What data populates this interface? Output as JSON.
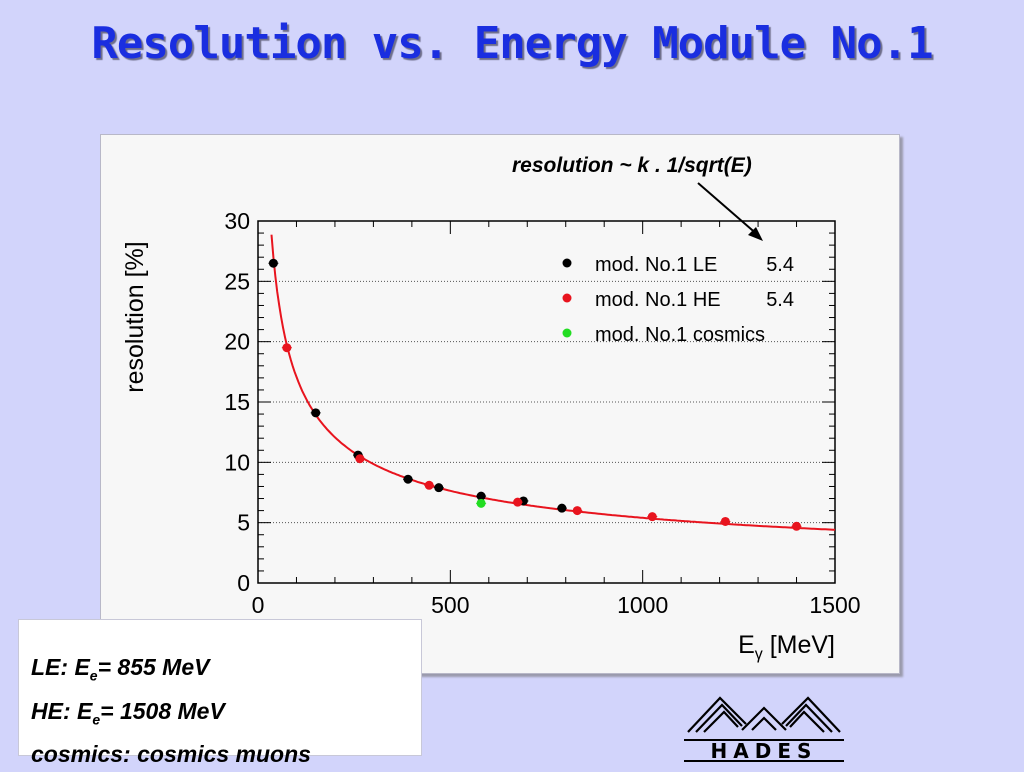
{
  "slide": {
    "title": "Resolution vs. Energy Module No.1"
  },
  "notes": {
    "le_prefix": "LE: E",
    "le_sub": "e",
    "le_value": "=   855 MeV",
    "he_prefix": "HE: E",
    "he_sub": "e",
    "he_value": "= 1508 MeV",
    "cosmics": "cosmics: cosmics muons"
  },
  "logo": {
    "text": "HADES"
  },
  "chart_data": {
    "type": "scatter",
    "annotation": "resolution ~ k . 1/sqrt(E)",
    "xlabel": "E",
    "xlabel_sub": "γ",
    "xlabel_unit": " [MeV]",
    "ylabel": "resolution [%]",
    "xlim": [
      0,
      1500
    ],
    "ylim": [
      0,
      30
    ],
    "x_ticks": [
      0,
      500,
      1000,
      1500
    ],
    "y_ticks": [
      0,
      5,
      10,
      15,
      20,
      25,
      30
    ],
    "grid": "horizontal dotted",
    "legend_position": "top-right",
    "series": [
      {
        "name": "mod. No.1 LE",
        "k": "5.4",
        "color": "#000000",
        "points": [
          {
            "x": 40,
            "y": 26.5
          },
          {
            "x": 150,
            "y": 14.1
          },
          {
            "x": 260,
            "y": 10.6
          },
          {
            "x": 390,
            "y": 8.6
          },
          {
            "x": 470,
            "y": 7.9
          },
          {
            "x": 580,
            "y": 7.2
          },
          {
            "x": 690,
            "y": 6.8
          },
          {
            "x": 790,
            "y": 6.2
          }
        ]
      },
      {
        "name": "mod. No.1 HE",
        "k": "5.4",
        "color": "#e8141e",
        "points": [
          {
            "x": 75,
            "y": 19.5
          },
          {
            "x": 265,
            "y": 10.3
          },
          {
            "x": 445,
            "y": 8.1
          },
          {
            "x": 675,
            "y": 6.7
          },
          {
            "x": 830,
            "y": 6.0
          },
          {
            "x": 1025,
            "y": 5.5
          },
          {
            "x": 1215,
            "y": 5.1
          },
          {
            "x": 1400,
            "y": 4.7
          }
        ]
      },
      {
        "name": "mod. No.1 cosmics",
        "k": "",
        "color": "#22dd22",
        "points": [
          {
            "x": 580,
            "y": 6.6
          }
        ]
      }
    ],
    "fit": {
      "k": 5.4,
      "x_range": [
        35,
        1500
      ],
      "color": "#e8141e"
    }
  }
}
